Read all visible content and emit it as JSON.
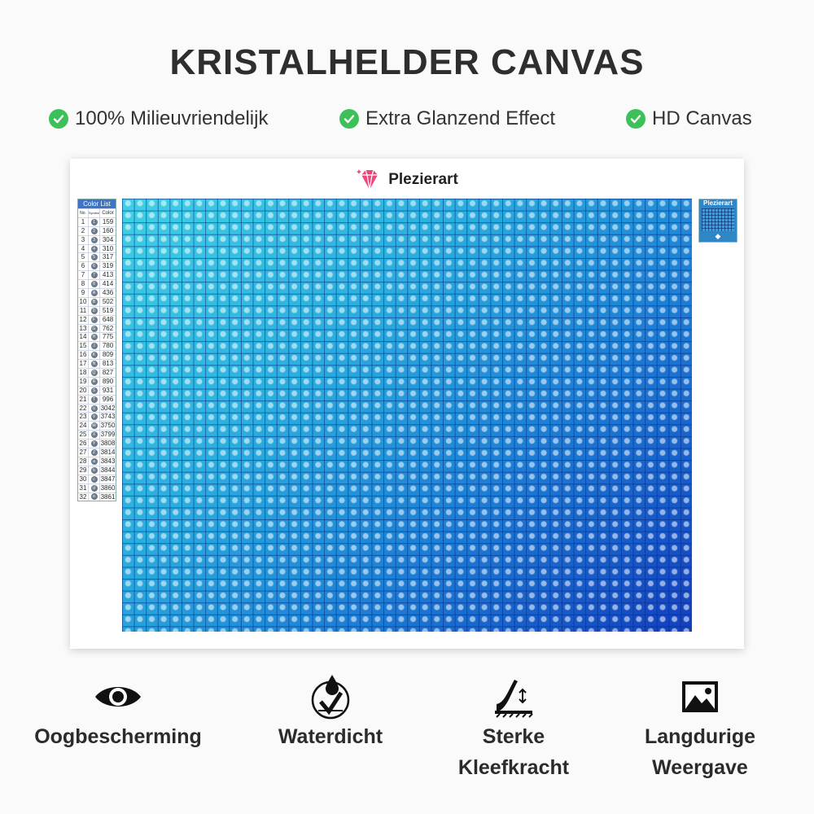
{
  "title": "KRISTALHELDER CANVAS",
  "features": [
    {
      "label": "100% Milieuvriendelijk",
      "icon": "check-icon"
    },
    {
      "label": "Extra Glanzend Effect",
      "icon": "check-icon"
    },
    {
      "label": "HD Canvas",
      "icon": "check-icon"
    }
  ],
  "accent_color": "#3cc05a",
  "canvas": {
    "brand": "Plezierart",
    "color_list": {
      "header": "Color List",
      "columns": [
        "No.",
        "Symbol",
        "Color"
      ],
      "rows": [
        {
          "no": "1",
          "sym": "1",
          "code": "159"
        },
        {
          "no": "2",
          "sym": "2",
          "code": "160"
        },
        {
          "no": "3",
          "sym": "3",
          "code": "304"
        },
        {
          "no": "4",
          "sym": "4",
          "code": "310"
        },
        {
          "no": "5",
          "sym": "5",
          "code": "317"
        },
        {
          "no": "6",
          "sym": "6",
          "code": "319"
        },
        {
          "no": "7",
          "sym": "7",
          "code": "413"
        },
        {
          "no": "8",
          "sym": "8",
          "code": "414"
        },
        {
          "no": "9",
          "sym": "A",
          "code": "436"
        },
        {
          "no": "10",
          "sym": "B",
          "code": "502"
        },
        {
          "no": "11",
          "sym": "D",
          "code": "519"
        },
        {
          "no": "12",
          "sym": "F",
          "code": "648"
        },
        {
          "no": "13",
          "sym": "G",
          "code": "762"
        },
        {
          "no": "14",
          "sym": "H",
          "code": "775"
        },
        {
          "no": "15",
          "sym": "J",
          "code": "780"
        },
        {
          "no": "16",
          "sym": "K",
          "code": "809"
        },
        {
          "no": "17",
          "sym": "N",
          "code": "813"
        },
        {
          "no": "18",
          "sym": "Q",
          "code": "827"
        },
        {
          "no": "19",
          "sym": "R",
          "code": "890"
        },
        {
          "no": "20",
          "sym": "S",
          "code": "931"
        },
        {
          "no": "21",
          "sym": "T",
          "code": "996"
        },
        {
          "no": "22",
          "sym": "U",
          "code": "3042"
        },
        {
          "no": "23",
          "sym": "V",
          "code": "3743"
        },
        {
          "no": "24",
          "sym": "W",
          "code": "3750"
        },
        {
          "no": "25",
          "sym": "X",
          "code": "3799"
        },
        {
          "no": "26",
          "sym": "Y",
          "code": "3808"
        },
        {
          "no": "27",
          "sym": "Z",
          "code": "3814"
        },
        {
          "no": "28",
          "sym": "a",
          "code": "3843"
        },
        {
          "no": "29",
          "sym": "b",
          "code": "3844"
        },
        {
          "no": "30",
          "sym": "c",
          "code": "3847"
        },
        {
          "no": "31",
          "sym": "d",
          "code": "3860"
        },
        {
          "no": "32",
          "sym": "e",
          "code": "3861"
        }
      ]
    },
    "preview_brand": "Plezierart"
  },
  "bottom_features": [
    {
      "line1": "Oogbescherming",
      "line2": "",
      "icon": "eye-icon"
    },
    {
      "line1": "Waterdicht",
      "line2": "",
      "icon": "waterproof-icon"
    },
    {
      "line1": "Sterke",
      "line2": "Kleefkracht",
      "icon": "adhesive-icon"
    },
    {
      "line1": "Langdurige",
      "line2": "Weergave",
      "icon": "image-icon"
    }
  ]
}
